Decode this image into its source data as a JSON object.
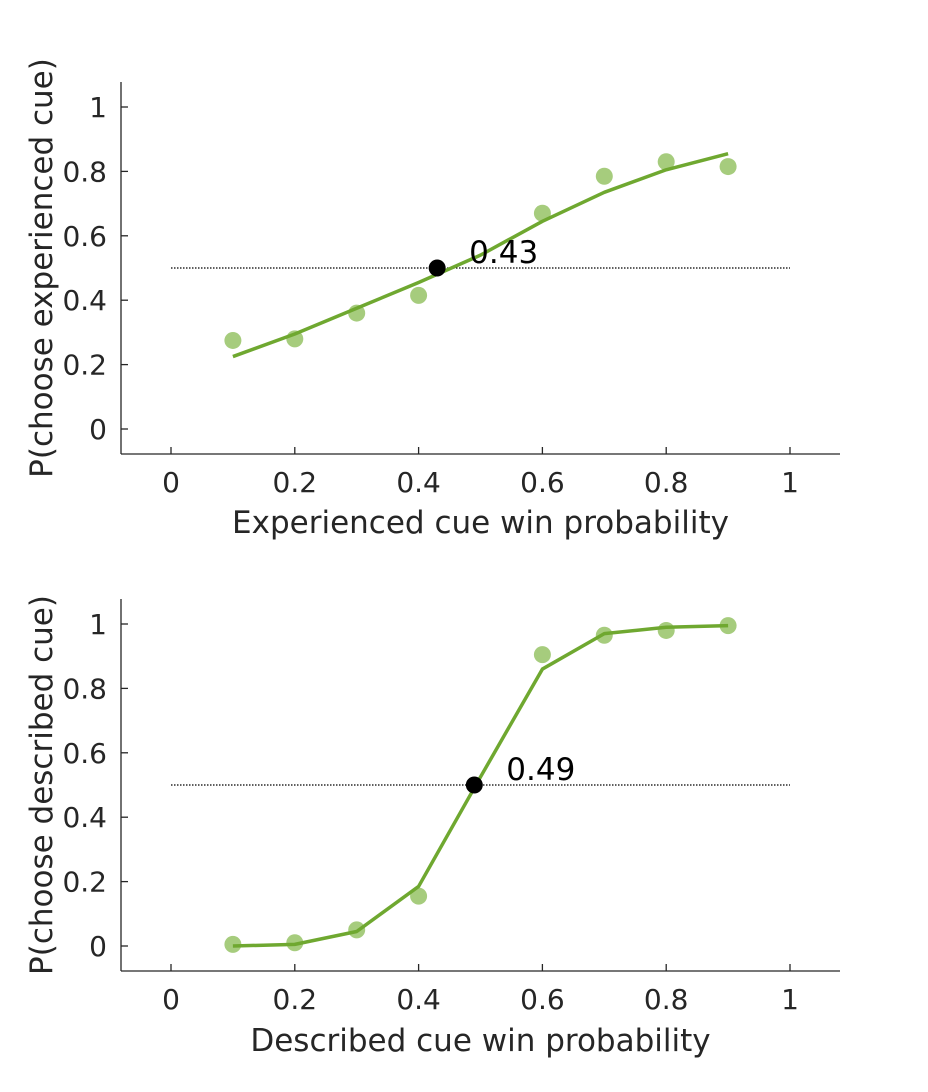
{
  "chart_data": [
    {
      "type": "scatter",
      "xlabel": "Experienced cue win probability",
      "ylabel": "P(choose experienced cue)",
      "xlim": [
        -0.08,
        1.08
      ],
      "ylim": [
        -0.08,
        1.08
      ],
      "xticks": [
        0,
        0.2,
        0.4,
        0.6,
        0.8,
        1
      ],
      "yticks": [
        0,
        0.2,
        0.4,
        0.6,
        0.8,
        1
      ],
      "xtick_labels": [
        "0",
        "0.2",
        "0.4",
        "0.6",
        "0.8",
        "1"
      ],
      "ytick_labels": [
        "0",
        "0.2",
        "0.4",
        "0.6",
        "0.8",
        "1"
      ],
      "grid": false,
      "series": [
        {
          "kind": "points",
          "color": "#a6cc7d",
          "x": [
            0.1,
            0.2,
            0.3,
            0.4,
            0.6,
            0.7,
            0.8,
            0.9
          ],
          "y": [
            0.275,
            0.28,
            0.36,
            0.415,
            0.67,
            0.785,
            0.83,
            0.815
          ]
        },
        {
          "kind": "fit",
          "color": "#6fa830",
          "x": [
            0.1,
            0.2,
            0.3,
            0.4,
            0.5,
            0.6,
            0.7,
            0.8,
            0.9
          ],
          "y": [
            0.225,
            0.295,
            0.375,
            0.455,
            0.54,
            0.645,
            0.735,
            0.805,
            0.855
          ]
        }
      ],
      "reference_line": {
        "y": 0.5,
        "x_range": [
          0,
          1
        ],
        "style": "dotted",
        "color": "#000000"
      },
      "threshold": {
        "x": 0.43,
        "y": 0.5,
        "label": "0.43",
        "color": "#000000"
      }
    },
    {
      "type": "scatter",
      "xlabel": "Described cue win probability",
      "ylabel": "P(choose described cue)",
      "xlim": [
        -0.08,
        1.08
      ],
      "ylim": [
        -0.08,
        1.08
      ],
      "xticks": [
        0,
        0.2,
        0.4,
        0.6,
        0.8,
        1
      ],
      "yticks": [
        0,
        0.2,
        0.4,
        0.6,
        0.8,
        1
      ],
      "xtick_labels": [
        "0",
        "0.2",
        "0.4",
        "0.6",
        "0.8",
        "1"
      ],
      "ytick_labels": [
        "0",
        "0.2",
        "0.4",
        "0.6",
        "0.8",
        "1"
      ],
      "grid": false,
      "series": [
        {
          "kind": "points",
          "color": "#a6cc7d",
          "x": [
            0.1,
            0.2,
            0.3,
            0.4,
            0.6,
            0.7,
            0.8,
            0.9
          ],
          "y": [
            0.005,
            0.01,
            0.05,
            0.155,
            0.905,
            0.965,
            0.98,
            0.995
          ]
        },
        {
          "kind": "fit",
          "color": "#6fa830",
          "x": [
            0.1,
            0.2,
            0.3,
            0.4,
            0.5,
            0.6,
            0.7,
            0.8,
            0.9
          ],
          "y": [
            0.0,
            0.005,
            0.045,
            0.185,
            0.525,
            0.86,
            0.97,
            0.99,
            0.995
          ]
        }
      ],
      "reference_line": {
        "y": 0.5,
        "x_range": [
          0,
          1
        ],
        "style": "dotted",
        "color": "#000000"
      },
      "threshold": {
        "x": 0.49,
        "y": 0.5,
        "label": "0.49",
        "color": "#000000"
      }
    }
  ]
}
